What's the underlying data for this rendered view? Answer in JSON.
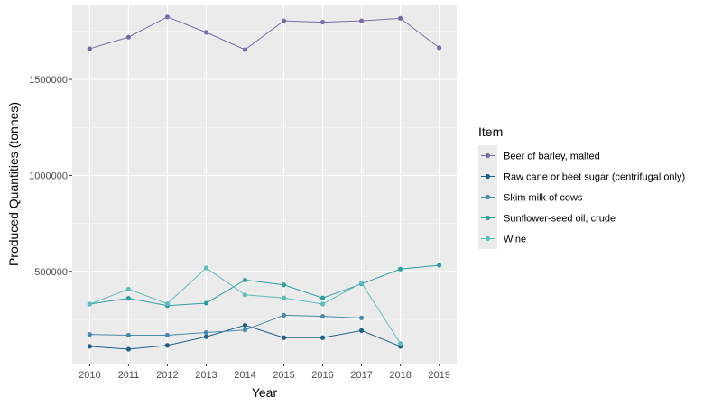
{
  "chart_data": {
    "type": "line",
    "xlabel": "Year",
    "ylabel": "Produced Quantities (tonnes)",
    "x": [
      2010,
      2011,
      2012,
      2013,
      2014,
      2015,
      2016,
      2017,
      2018,
      2019
    ],
    "xlim": [
      2009.55,
      2019.45
    ],
    "ylim": [
      20000,
      1890000
    ],
    "y_ticks": [
      500000,
      1000000,
      1500000
    ],
    "grid": true,
    "legend": {
      "title": "Item",
      "placement": "right"
    },
    "series": [
      {
        "name": "Beer of barley, malted",
        "color": "#7b6aa8",
        "values": [
          1660000,
          1720000,
          1825000,
          1745000,
          1655000,
          1805000,
          1798000,
          1805000,
          1818000,
          1665000
        ]
      },
      {
        "name": "Raw cane or beet sugar (centrifugal only)",
        "color": "#1e5f86",
        "values": [
          110000,
          95000,
          115000,
          160000,
          220000,
          155000,
          155000,
          192000,
          110000,
          null
        ]
      },
      {
        "name": "Skim milk of cows",
        "color": "#4a8aae",
        "values": [
          172000,
          168000,
          168000,
          182000,
          195000,
          272000,
          266000,
          258000,
          null,
          null
        ]
      },
      {
        "name": "Sunflower-seed oil, crude",
        "color": "#2f9ea0",
        "values": [
          330000,
          360000,
          322000,
          335000,
          455000,
          430000,
          362000,
          435000,
          512000,
          532000
        ]
      },
      {
        "name": "Wine",
        "color": "#5dbcbe",
        "values": [
          330000,
          408000,
          332000,
          518000,
          378000,
          362000,
          330000,
          440000,
          125000,
          null
        ]
      }
    ]
  }
}
